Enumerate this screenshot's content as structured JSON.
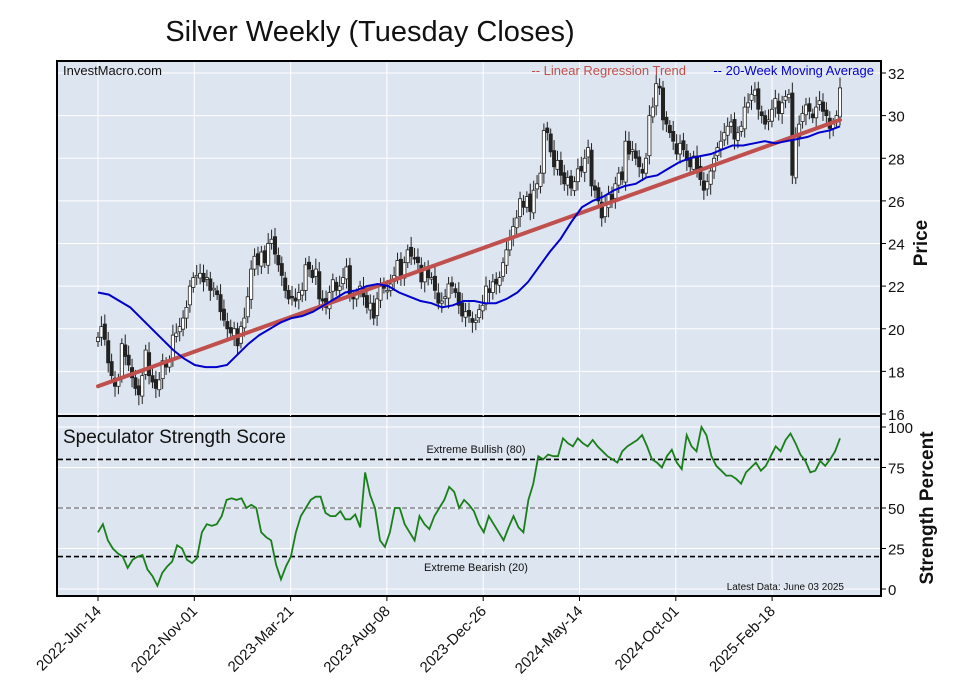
{
  "chart_data": {
    "type": "candlestick+line",
    "title": "Silver Weekly (Tuesday Closes)",
    "watermark": "InvestMacro.com",
    "legend": {
      "trend_label": "-- Linear Regression Trend",
      "ma_label": "-- 20-Week Moving Average",
      "trend_color": "#c0504d",
      "ma_color": "#0000cc"
    },
    "price_panel": {
      "ylabel": "Price",
      "ylim": [
        16,
        32
      ],
      "yticks": [
        16,
        18,
        20,
        22,
        24,
        26,
        28,
        30,
        32
      ],
      "trend": {
        "start": 17.3,
        "end": 29.8
      },
      "closes": [
        19.6,
        20.1,
        19.5,
        18.4,
        17.8,
        17.3,
        17.6,
        19.3,
        18.7,
        18.3,
        17.7,
        17.2,
        16.9,
        17.8,
        19.0,
        17.8,
        17.5,
        17.2,
        17.6,
        18.5,
        18.2,
        18.5,
        19.7,
        19.8,
        20.1,
        20.5,
        21.0,
        22.0,
        22.4,
        22.5,
        22.6,
        22.2,
        22.4,
        21.8,
        21.9,
        21.6,
        20.8,
        20.4,
        20.0,
        19.8,
        20.0,
        19.2,
        20.1,
        20.5,
        21.5,
        22.8,
        23.4,
        23.0,
        23.6,
        23.1,
        24.0,
        24.2,
        23.5,
        23.0,
        22.5,
        21.8,
        21.4,
        21.5,
        21.3,
        21.7,
        21.8,
        23.0,
        22.8,
        22.4,
        22.8,
        21.4,
        21.3,
        21.0,
        21.7,
        22.3,
        21.8,
        22.0,
        22.4,
        22.9,
        21.6,
        21.4,
        21.6,
        22.0,
        21.5,
        21.0,
        21.2,
        20.5,
        21.4,
        22.1,
        21.9,
        21.8,
        22.1,
        22.5,
        23.2,
        22.5,
        23.1,
        23.7,
        23.4,
        23.3,
        23.1,
        22.2,
        22.8,
        22.4,
        22.4,
        21.8,
        21.2,
        21.3,
        21.5,
        22.1,
        22.0,
        21.7,
        21.1,
        20.6,
        20.8,
        20.6,
        20.3,
        20.4,
        20.9,
        21.1,
        22.0,
        21.7,
        22.2,
        22.1,
        22.4,
        23.1,
        23.7,
        24.2,
        24.8,
        25.2,
        26.1,
        25.7,
        26.2,
        25.5,
        26.5,
        26.8,
        27.3,
        29.3,
        29.2,
        28.3,
        27.6,
        27.9,
        27.2,
        26.8,
        27.1,
        26.6,
        26.9,
        27.5,
        27.4,
        28.0,
        28.5,
        26.7,
        26.5,
        26.0,
        25.2,
        25.8,
        26.3,
        26.0,
        26.8,
        27.3,
        27.0,
        28.8,
        28.2,
        28.4,
        28.0,
        27.6,
        27.3,
        28.0,
        30.0,
        30.4,
        31.5,
        31.3,
        29.8,
        29.6,
        29.2,
        28.8,
        28.2,
        28.7,
        28.4,
        27.9,
        27.6,
        28.1,
        27.5,
        27.0,
        26.5,
        26.9,
        27.4,
        28.0,
        28.5,
        28.8,
        29.2,
        29.5,
        29.7,
        28.9,
        29.2,
        29.5,
        30.4,
        30.6,
        31.0,
        31.2,
        30.3,
        30.0,
        29.6,
        29.8,
        30.3,
        30.8,
        30.1,
        30.6,
        30.9,
        31.0,
        27.2,
        29.0,
        29.6,
        30.1,
        30.5,
        30.2,
        29.9,
        30.4,
        30.7,
        30.2,
        30.0,
        29.4,
        29.6,
        30.0,
        31.3
      ],
      "moving_average": [
        21.7,
        21.6,
        21.3,
        21.0,
        20.5,
        20.0,
        19.5,
        19.0,
        18.6,
        18.3,
        18.2,
        18.2,
        18.3,
        18.8,
        19.3,
        19.7,
        20.0,
        20.3,
        20.5,
        20.6,
        20.8,
        21.1,
        21.4,
        21.7,
        21.8,
        22.0,
        22.1,
        22.0,
        21.7,
        21.5,
        21.3,
        21.2,
        21.0,
        21.1,
        21.3,
        21.3,
        21.2,
        21.2,
        21.4,
        21.7,
        22.2,
        22.9,
        23.6,
        24.2,
        25.0,
        25.7,
        26.0,
        26.2,
        26.5,
        26.7,
        26.8,
        27.1,
        27.2,
        27.5,
        27.8,
        28.0,
        28.1,
        28.2,
        28.4,
        28.6,
        28.6,
        28.7,
        28.8,
        28.7,
        28.8,
        28.9,
        29.0,
        29.2,
        29.3,
        29.5
      ],
      "x_index_range": [
        0,
        209
      ]
    },
    "score_panel": {
      "label": "Speculator Strength Score",
      "ylabel": "Strength Percent",
      "ylim": [
        0,
        100
      ],
      "yticks": [
        0,
        25,
        50,
        75,
        100
      ],
      "extreme_bullish": 80,
      "extreme_bearish": 20,
      "extreme_bullish_label": "Extreme Bullish (80)",
      "extreme_bearish_label": "Extreme Bearish (20)",
      "midline": 50,
      "latest_data": "Latest Data: June 03 2025",
      "line_color": "#1a7f1a",
      "values": [
        35,
        40,
        30,
        25,
        22,
        20,
        13,
        18,
        20,
        21,
        12,
        8,
        2,
        10,
        14,
        17,
        27,
        25,
        18,
        16,
        19,
        35,
        40,
        39,
        40,
        45,
        55,
        56,
        55,
        56,
        50,
        52,
        50,
        35,
        32,
        30,
        15,
        6,
        14,
        20,
        35,
        45,
        50,
        55,
        57,
        57,
        47,
        45,
        45,
        48,
        43,
        43,
        46,
        38,
        72,
        58,
        50,
        30,
        26,
        35,
        50,
        50,
        40,
        35,
        30,
        45,
        40,
        37,
        45,
        50,
        55,
        63,
        60,
        50,
        55,
        52,
        48,
        40,
        35,
        45,
        40,
        35,
        30,
        38,
        45,
        38,
        35,
        55,
        65,
        82,
        80,
        83,
        82,
        82,
        93,
        90,
        88,
        93,
        90,
        88,
        92,
        88,
        85,
        82,
        80,
        78,
        85,
        88,
        90,
        92,
        95,
        88,
        80,
        78,
        75,
        82,
        86,
        78,
        74,
        95,
        88,
        85,
        100,
        95,
        82,
        76,
        73,
        70,
        70,
        68,
        65,
        72,
        75,
        78,
        73,
        76,
        82,
        88,
        85,
        92,
        96,
        90,
        83,
        79,
        72,
        73,
        79,
        76,
        80,
        85,
        93
      ]
    },
    "x_axis": {
      "tick_labels": [
        "2022-Jun-14",
        "2022-Nov-01",
        "2023-Mar-21",
        "2023-Aug-08",
        "2023-Dec-26",
        "2024-May-14",
        "2024-Oct-01",
        "2025-Feb-18"
      ]
    }
  }
}
